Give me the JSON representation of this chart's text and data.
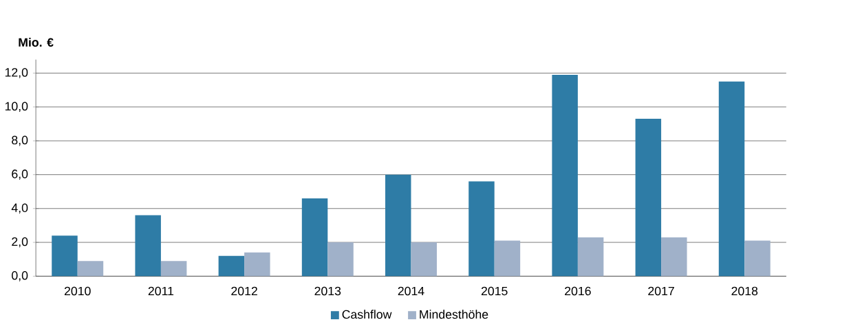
{
  "chart_data": {
    "type": "bar",
    "ylabel": "Mio. €",
    "categories": [
      "2010",
      "2011",
      "2012",
      "2013",
      "2014",
      "2015",
      "2016",
      "2017",
      "2018"
    ],
    "series": [
      {
        "name": "Cashflow",
        "color": "#2e7ca6",
        "values": [
          2.4,
          3.6,
          1.2,
          4.6,
          6.0,
          5.6,
          11.9,
          9.3,
          11.5
        ]
      },
      {
        "name": "Mindesthöhe",
        "color": "#a0b1c9",
        "values": [
          0.9,
          0.9,
          1.4,
          2.0,
          2.0,
          2.1,
          2.3,
          2.3,
          2.1
        ]
      }
    ],
    "ylim": [
      0,
      12.8
    ],
    "yticks": [
      {
        "value": 0,
        "label": "0,0"
      },
      {
        "value": 2,
        "label": "2,0"
      },
      {
        "value": 4,
        "label": "4,0"
      },
      {
        "value": 6,
        "label": "6,0"
      },
      {
        "value": 8,
        "label": "8,0"
      },
      {
        "value": 10,
        "label": "10,0"
      },
      {
        "value": 12,
        "label": "12,0"
      }
    ],
    "grid": "y",
    "legend": "bottom"
  }
}
